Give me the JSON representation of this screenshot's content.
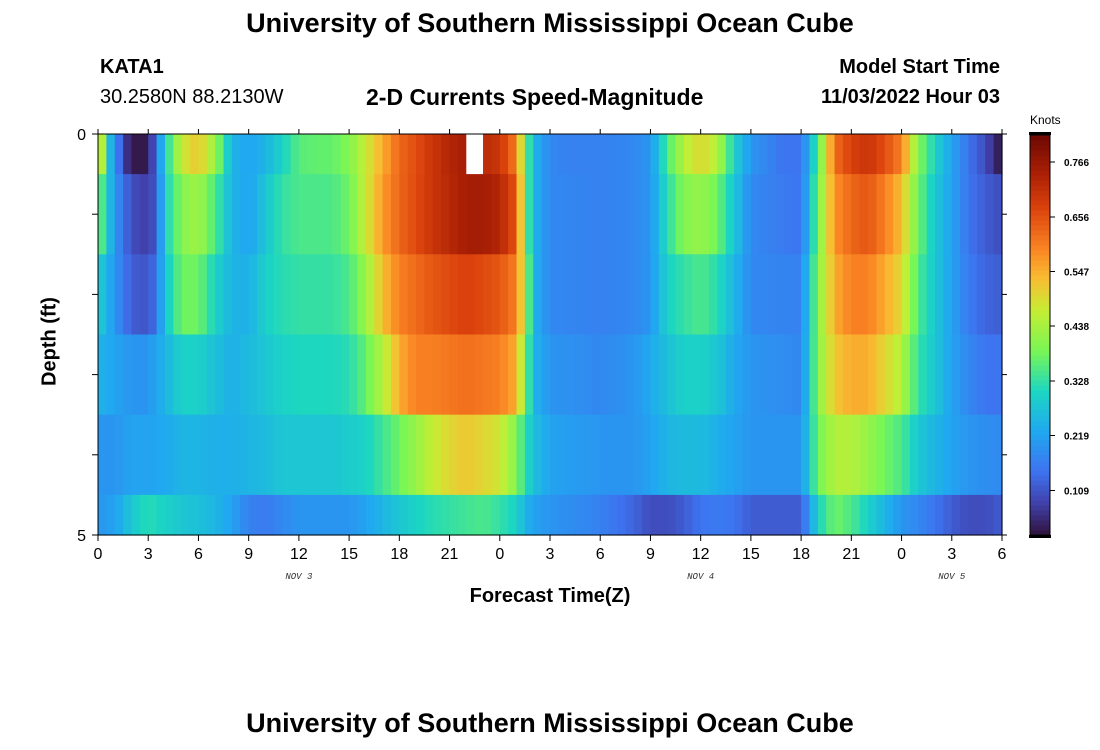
{
  "header": {
    "main_title": "University of Southern Mississippi Ocean Cube",
    "station_id": "KATA1",
    "station_coords": "30.2580N  88.2130W",
    "plot_title": "2-D Currents Speed-Magnitude",
    "model_start_label": "Model Start Time",
    "model_start_value": "11/03/2022 Hour 03"
  },
  "footer": {
    "next_title": "University of Southern Mississippi Ocean Cube"
  },
  "colors": {
    "axis": "#000000",
    "missing": "#ffffff"
  },
  "chart_data": {
    "type": "heatmap",
    "title": "2-D Currents Speed-Magnitude",
    "xlabel": "Forecast Time(Z)",
    "ylabel": "Depth (ft)",
    "x_tick_labels": [
      "0",
      "3",
      "6",
      "9",
      "12",
      "15",
      "18",
      "21",
      "0",
      "3",
      "6",
      "9",
      "12",
      "15",
      "18",
      "21",
      "0",
      "3",
      "6"
    ],
    "date_labels": [
      {
        "text": "NOV 3",
        "hour": 12
      },
      {
        "text": "NOV 4",
        "hour": 36
      },
      {
        "text": "NOV 5",
        "hour": 51
      }
    ],
    "x_range_hours": [
      0,
      54
    ],
    "ylim": [
      0,
      5
    ],
    "y_tick_labels": [
      {
        "value": 0,
        "label": "0"
      },
      {
        "value": 1,
        "label": ""
      },
      {
        "value": 2,
        "label": ""
      },
      {
        "value": 3,
        "label": ""
      },
      {
        "value": 4,
        "label": ""
      },
      {
        "value": 5,
        "label": "5"
      }
    ],
    "depth_bins": [
      [
        0,
        0.5
      ],
      [
        0.5,
        1.5
      ],
      [
        1.5,
        2.5
      ],
      [
        2.5,
        3.5
      ],
      [
        3.5,
        4.5
      ],
      [
        4.5,
        5
      ]
    ],
    "colorbar": {
      "unit": "Knots",
      "min": 0.02,
      "max": 0.82,
      "tick_values": [
        0.109,
        0.219,
        0.328,
        0.438,
        0.547,
        0.656,
        0.766
      ],
      "tick_labels": [
        "0.109",
        "0.219",
        "0.328",
        "0.438",
        "0.547",
        "0.656",
        "0.766"
      ]
    },
    "missing_cell": {
      "hour_start": 22,
      "hour_end": 23,
      "depth_bin": 0
    },
    "speed_profiles": [
      [
        [
          0,
          0.6
        ],
        [
          0.5,
          0.3
        ],
        [
          1,
          0.2
        ],
        [
          1.5,
          0.09
        ],
        [
          2,
          0.03
        ],
        [
          3,
          0.03
        ],
        [
          3.5,
          0.15
        ],
        [
          4,
          0.3
        ],
        [
          5,
          0.47
        ],
        [
          6,
          0.52
        ],
        [
          7,
          0.42
        ],
        [
          8,
          0.25
        ],
        [
          9,
          0.22
        ],
        [
          10,
          0.25
        ],
        [
          11,
          0.3
        ],
        [
          12,
          0.36
        ],
        [
          13,
          0.37
        ],
        [
          14,
          0.37
        ],
        [
          15,
          0.4
        ],
        [
          16,
          0.47
        ],
        [
          17,
          0.55
        ],
        [
          18,
          0.63
        ],
        [
          19,
          0.66
        ],
        [
          20,
          0.7
        ],
        [
          21,
          0.73
        ],
        [
          22,
          0.75
        ],
        [
          23,
          0.72
        ],
        [
          24,
          0.7
        ],
        [
          25,
          0.6
        ],
        [
          25.5,
          0.4
        ],
        [
          26,
          0.25
        ],
        [
          27,
          0.18
        ],
        [
          28,
          0.17
        ],
        [
          30,
          0.17
        ],
        [
          32,
          0.18
        ],
        [
          33,
          0.2
        ],
        [
          34,
          0.35
        ],
        [
          35,
          0.45
        ],
        [
          36,
          0.5
        ],
        [
          37,
          0.45
        ],
        [
          38,
          0.3
        ],
        [
          39,
          0.2
        ],
        [
          41,
          0.15
        ],
        [
          42,
          0.15
        ],
        [
          43,
          0.35
        ],
        [
          44,
          0.62
        ],
        [
          45,
          0.68
        ],
        [
          46,
          0.7
        ],
        [
          47,
          0.66
        ],
        [
          48,
          0.6
        ],
        [
          49,
          0.4
        ],
        [
          50,
          0.3
        ],
        [
          51,
          0.22
        ],
        [
          52,
          0.15
        ],
        [
          53,
          0.1
        ],
        [
          54,
          0.02
        ]
      ],
      [
        [
          0,
          0.4
        ],
        [
          1,
          0.2
        ],
        [
          2,
          0.1
        ],
        [
          3,
          0.08
        ],
        [
          3.5,
          0.12
        ],
        [
          4,
          0.3
        ],
        [
          5,
          0.4
        ],
        [
          6,
          0.43
        ],
        [
          7,
          0.35
        ],
        [
          8,
          0.25
        ],
        [
          9,
          0.22
        ],
        [
          10,
          0.28
        ],
        [
          11,
          0.33
        ],
        [
          12,
          0.35
        ],
        [
          14,
          0.35
        ],
        [
          15,
          0.38
        ],
        [
          16,
          0.47
        ],
        [
          17,
          0.57
        ],
        [
          18,
          0.63
        ],
        [
          20,
          0.7
        ],
        [
          22,
          0.75
        ],
        [
          23,
          0.75
        ],
        [
          24,
          0.73
        ],
        [
          25,
          0.65
        ],
        [
          25.5,
          0.4
        ],
        [
          26,
          0.25
        ],
        [
          27,
          0.18
        ],
        [
          30,
          0.17
        ],
        [
          32,
          0.18
        ],
        [
          33,
          0.2
        ],
        [
          34,
          0.32
        ],
        [
          35,
          0.4
        ],
        [
          36,
          0.42
        ],
        [
          37,
          0.38
        ],
        [
          38,
          0.28
        ],
        [
          39,
          0.18
        ],
        [
          42,
          0.15
        ],
        [
          43,
          0.38
        ],
        [
          44,
          0.58
        ],
        [
          45,
          0.63
        ],
        [
          46,
          0.65
        ],
        [
          47,
          0.6
        ],
        [
          48,
          0.53
        ],
        [
          49,
          0.38
        ],
        [
          50,
          0.28
        ],
        [
          51,
          0.22
        ],
        [
          52,
          0.15
        ],
        [
          53,
          0.12
        ],
        [
          54,
          0.1
        ]
      ],
      [
        [
          0,
          0.3
        ],
        [
          1,
          0.2
        ],
        [
          2,
          0.12
        ],
        [
          3,
          0.11
        ],
        [
          3.5,
          0.15
        ],
        [
          4,
          0.28
        ],
        [
          5,
          0.38
        ],
        [
          6,
          0.38
        ],
        [
          7,
          0.3
        ],
        [
          8,
          0.25
        ],
        [
          9,
          0.24
        ],
        [
          10,
          0.3
        ],
        [
          11,
          0.32
        ],
        [
          12,
          0.33
        ],
        [
          14,
          0.33
        ],
        [
          15,
          0.35
        ],
        [
          16,
          0.42
        ],
        [
          17,
          0.53
        ],
        [
          18,
          0.6
        ],
        [
          20,
          0.65
        ],
        [
          22,
          0.68
        ],
        [
          24,
          0.65
        ],
        [
          25,
          0.6
        ],
        [
          25.5,
          0.45
        ],
        [
          26,
          0.25
        ],
        [
          27,
          0.18
        ],
        [
          30,
          0.17
        ],
        [
          32,
          0.18
        ],
        [
          33,
          0.2
        ],
        [
          34,
          0.3
        ],
        [
          35,
          0.33
        ],
        [
          36,
          0.35
        ],
        [
          37,
          0.32
        ],
        [
          38,
          0.25
        ],
        [
          39,
          0.18
        ],
        [
          42,
          0.17
        ],
        [
          43,
          0.4
        ],
        [
          44,
          0.55
        ],
        [
          45,
          0.6
        ],
        [
          46,
          0.6
        ],
        [
          47,
          0.55
        ],
        [
          48,
          0.5
        ],
        [
          49,
          0.35
        ],
        [
          50,
          0.28
        ],
        [
          51,
          0.22
        ],
        [
          52,
          0.16
        ],
        [
          53,
          0.13
        ],
        [
          54,
          0.12
        ]
      ],
      [
        [
          0,
          0.25
        ],
        [
          1,
          0.22
        ],
        [
          2,
          0.2
        ],
        [
          3,
          0.2
        ],
        [
          4,
          0.25
        ],
        [
          5,
          0.3
        ],
        [
          6,
          0.3
        ],
        [
          7,
          0.27
        ],
        [
          8,
          0.24
        ],
        [
          9,
          0.26
        ],
        [
          10,
          0.28
        ],
        [
          11,
          0.3
        ],
        [
          12,
          0.31
        ],
        [
          14,
          0.31
        ],
        [
          15,
          0.32
        ],
        [
          16,
          0.37
        ],
        [
          17,
          0.45
        ],
        [
          18,
          0.55
        ],
        [
          19,
          0.6
        ],
        [
          20,
          0.6
        ],
        [
          22,
          0.62
        ],
        [
          24,
          0.6
        ],
        [
          25,
          0.55
        ],
        [
          25.5,
          0.4
        ],
        [
          26,
          0.25
        ],
        [
          27,
          0.2
        ],
        [
          30,
          0.18
        ],
        [
          32,
          0.2
        ],
        [
          33,
          0.23
        ],
        [
          34,
          0.27
        ],
        [
          35,
          0.3
        ],
        [
          36,
          0.3
        ],
        [
          37,
          0.28
        ],
        [
          38,
          0.23
        ],
        [
          39,
          0.2
        ],
        [
          42,
          0.18
        ],
        [
          43,
          0.4
        ],
        [
          44,
          0.52
        ],
        [
          45,
          0.55
        ],
        [
          46,
          0.55
        ],
        [
          47,
          0.5
        ],
        [
          48,
          0.45
        ],
        [
          49,
          0.33
        ],
        [
          50,
          0.28
        ],
        [
          51,
          0.22
        ],
        [
          52,
          0.18
        ],
        [
          53,
          0.15
        ],
        [
          54,
          0.15
        ]
      ],
      [
        [
          0,
          0.2
        ],
        [
          1,
          0.2
        ],
        [
          2,
          0.22
        ],
        [
          3,
          0.22
        ],
        [
          4,
          0.23
        ],
        [
          5,
          0.25
        ],
        [
          6,
          0.25
        ],
        [
          7,
          0.24
        ],
        [
          8,
          0.24
        ],
        [
          9,
          0.25
        ],
        [
          10,
          0.26
        ],
        [
          11,
          0.28
        ],
        [
          12,
          0.28
        ],
        [
          14,
          0.28
        ],
        [
          15,
          0.29
        ],
        [
          16,
          0.3
        ],
        [
          17,
          0.34
        ],
        [
          18,
          0.38
        ],
        [
          19,
          0.42
        ],
        [
          20,
          0.47
        ],
        [
          21,
          0.5
        ],
        [
          22,
          0.52
        ],
        [
          24,
          0.48
        ],
        [
          25,
          0.4
        ],
        [
          25.5,
          0.32
        ],
        [
          26,
          0.27
        ],
        [
          27,
          0.22
        ],
        [
          30,
          0.2
        ],
        [
          32,
          0.2
        ],
        [
          33,
          0.22
        ],
        [
          34,
          0.25
        ],
        [
          35,
          0.26
        ],
        [
          36,
          0.26
        ],
        [
          37,
          0.24
        ],
        [
          38,
          0.22
        ],
        [
          39,
          0.2
        ],
        [
          42,
          0.2
        ],
        [
          43,
          0.38
        ],
        [
          44,
          0.45
        ],
        [
          45,
          0.45
        ],
        [
          46,
          0.42
        ],
        [
          47,
          0.38
        ],
        [
          48,
          0.35
        ],
        [
          49,
          0.28
        ],
        [
          50,
          0.25
        ],
        [
          51,
          0.22
        ],
        [
          52,
          0.2
        ],
        [
          53,
          0.19
        ],
        [
          54,
          0.18
        ]
      ],
      [
        [
          0,
          0.2
        ],
        [
          1,
          0.22
        ],
        [
          2,
          0.28
        ],
        [
          3,
          0.32
        ],
        [
          4,
          0.3
        ],
        [
          5,
          0.28
        ],
        [
          6,
          0.27
        ],
        [
          7,
          0.25
        ],
        [
          8,
          0.22
        ],
        [
          9,
          0.17
        ],
        [
          10,
          0.16
        ],
        [
          11,
          0.18
        ],
        [
          12,
          0.2
        ],
        [
          14,
          0.2
        ],
        [
          15,
          0.2
        ],
        [
          16,
          0.22
        ],
        [
          17,
          0.25
        ],
        [
          18,
          0.28
        ],
        [
          19,
          0.3
        ],
        [
          20,
          0.32
        ],
        [
          21,
          0.33
        ],
        [
          22,
          0.34
        ],
        [
          23,
          0.35
        ],
        [
          24,
          0.33
        ],
        [
          25,
          0.3
        ],
        [
          25.5,
          0.25
        ],
        [
          26,
          0.22
        ],
        [
          27,
          0.2
        ],
        [
          30,
          0.17
        ],
        [
          32,
          0.13
        ],
        [
          33,
          0.1
        ],
        [
          34,
          0.1
        ],
        [
          35,
          0.12
        ],
        [
          36,
          0.15
        ],
        [
          37,
          0.16
        ],
        [
          38,
          0.15
        ],
        [
          39,
          0.12
        ],
        [
          42,
          0.12
        ],
        [
          43,
          0.3
        ],
        [
          44,
          0.38
        ],
        [
          45,
          0.35
        ],
        [
          46,
          0.3
        ],
        [
          47,
          0.25
        ],
        [
          48,
          0.2
        ],
        [
          49,
          0.18
        ],
        [
          50,
          0.15
        ],
        [
          51,
          0.12
        ],
        [
          52,
          0.1
        ],
        [
          53,
          0.1
        ],
        [
          54,
          0.12
        ]
      ]
    ]
  }
}
